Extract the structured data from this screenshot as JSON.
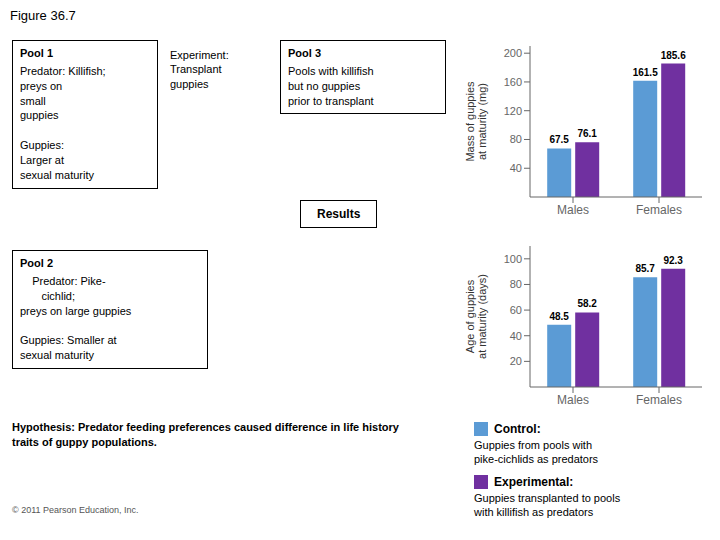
{
  "title": "Figure 36.7",
  "chart_data": [
    {
      "type": "bar",
      "categories": [
        "Males",
        "Females"
      ],
      "ylabel": "Mass of guppies\nat maturity (mg)",
      "ylim": [
        0,
        210
      ],
      "yticks": [
        40,
        80,
        120,
        160,
        200
      ],
      "data_labels": true,
      "series": [
        {
          "name": "Control:",
          "color": "#5b9bd5",
          "values": [
            67.5,
            161.5
          ]
        },
        {
          "name": "Experimental:",
          "color": "#7030a0",
          "values": [
            76.1,
            185.6
          ]
        }
      ]
    },
    {
      "type": "bar",
      "categories": [
        "Males",
        "Females"
      ],
      "ylabel": "Age of guppies\nat maturity (days)",
      "ylim": [
        0,
        110
      ],
      "yticks": [
        20,
        40,
        60,
        80,
        100
      ],
      "data_labels": true,
      "series": [
        {
          "name": "Control:",
          "color": "#5b9bd5",
          "values": [
            48.5,
            85.7
          ]
        },
        {
          "name": "Experimental:",
          "color": "#7030a0",
          "values": [
            58.2,
            92.3
          ]
        }
      ]
    }
  ],
  "annotations": [
    {
      "label": "Pool 1",
      "text": "Predator: Killifish;\npreys on\nsmall\nguppies\n\nGuppies:\nLarger at\nsexual maturity"
    },
    {
      "text": "Experiment:\nTransplant\nguppies"
    },
    {
      "label": "Pool 3",
      "text": "Pools with killifish\nbut no guppies\nprior to transplant"
    },
    {
      "text": "Results"
    },
    {
      "label": "Pool 2",
      "text": "    Predator: Pike-\n       cichlid;\npreys on large guppies\n\nGuppies: Smaller at\nsexual maturity"
    },
    {
      "text": "Hypothesis: Predator feeding preferences caused difference in life history\ntraits of guppy populations."
    },
    {
      "text": "© 2011 Pearson Education, Inc."
    },
    {
      "text": "Guppies from pools with\npike-cichlids as predators"
    },
    {
      "text": "Guppies transplanted to pools\nwith killifish as predators"
    }
  ]
}
